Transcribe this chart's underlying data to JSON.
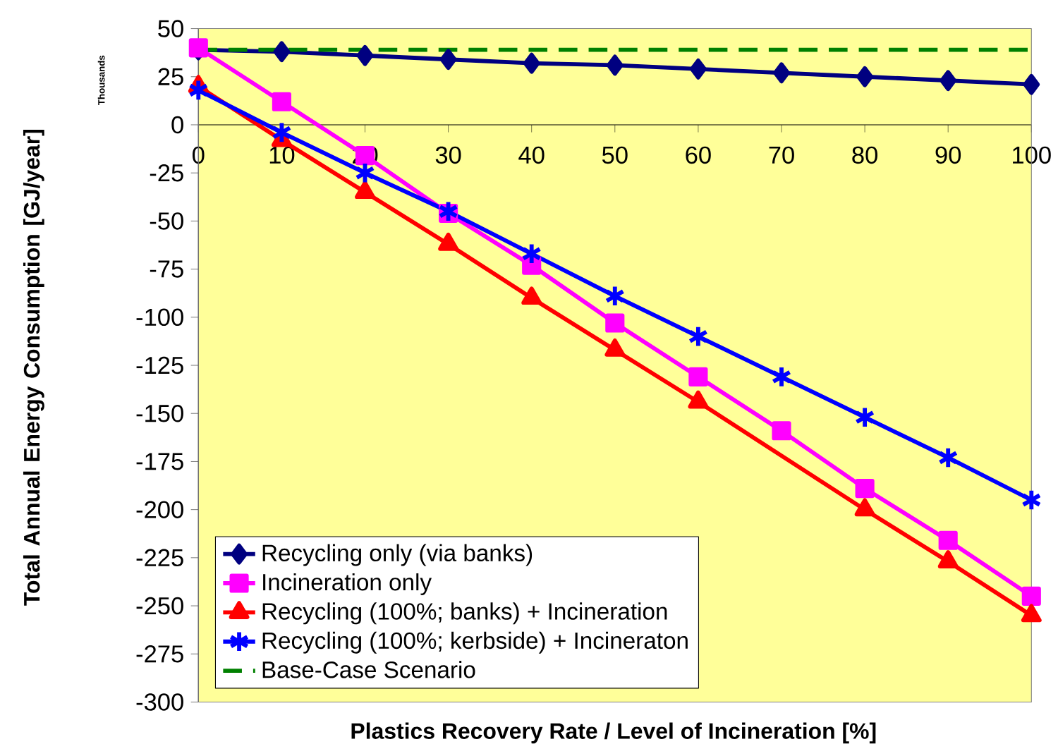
{
  "chart_data": {
    "type": "line",
    "xlabel": "Plastics Recovery Rate  / Level of Incineration  [%]",
    "ylabel": "Total Annual Energy Consumption [GJ/year]",
    "annotations": [
      "Thousands"
    ],
    "x": [
      0,
      10,
      20,
      30,
      40,
      50,
      60,
      70,
      80,
      90,
      100
    ],
    "xlim": [
      0,
      100
    ],
    "ylim": [
      -300,
      50
    ],
    "xticks": [
      0,
      10,
      20,
      30,
      40,
      50,
      60,
      70,
      80,
      90,
      100
    ],
    "yticks": [
      -300,
      -275,
      -250,
      -225,
      -200,
      -175,
      -150,
      -125,
      -100,
      -75,
      -50,
      -25,
      0,
      25,
      50
    ],
    "legend": "bottom left",
    "series": [
      {
        "name": "Recycling only (via banks)",
        "color": "#000080",
        "marker": "diamond",
        "values": [
          39,
          38,
          36,
          34,
          32,
          31,
          29,
          27,
          25,
          23,
          21
        ]
      },
      {
        "name": "Incineration only",
        "color": "#ff00ff",
        "marker": "square",
        "values": [
          40,
          12,
          -16,
          -46,
          -73,
          -103,
          -131,
          -159,
          -189,
          -216,
          -245
        ]
      },
      {
        "name": "Recycling (100%; banks) + Incineration",
        "color": "#ff0000",
        "marker": "triangle",
        "values": [
          20,
          -8,
          -35,
          -62,
          -90,
          -117,
          -144,
          null,
          -200,
          -227,
          -255
        ]
      },
      {
        "name": "Recycling (100%; kerbside) + Incineraton",
        "color": "#0000ff",
        "marker": "cross",
        "values": [
          18,
          -4,
          -25,
          -45,
          -67,
          -89,
          -110,
          -131,
          -152,
          -173,
          -195
        ]
      },
      {
        "name": "Base-Case Scenario",
        "color": "#008000",
        "marker": "none",
        "line_style": "dashed",
        "x": [
          0,
          100
        ],
        "values": [
          39,
          39
        ]
      }
    ]
  }
}
